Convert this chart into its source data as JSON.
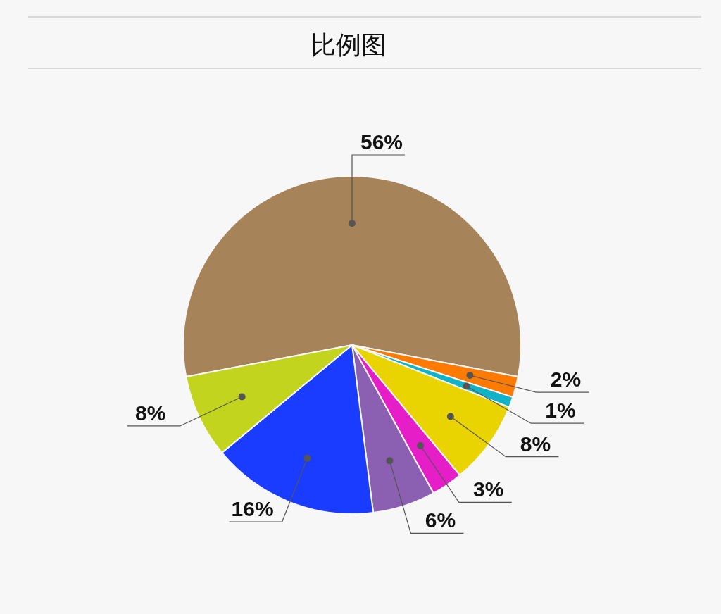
{
  "chart_data": {
    "type": "pie",
    "title": "比例图",
    "categories": [
      null,
      null,
      null,
      null,
      null,
      null,
      null,
      null
    ],
    "values": [
      56,
      2,
      1,
      8,
      3,
      6,
      16,
      8
    ],
    "colors": [
      "#a7835a",
      "#ff7a00",
      "#12b3c8",
      "#e9d300",
      "#e61ec8",
      "#8b5fb2",
      "#1a3cff",
      "#c3d41e"
    ],
    "value_labels": [
      "56%",
      "2%",
      "1%",
      "8%",
      "3%",
      "6%",
      "16%",
      "8%"
    ]
  }
}
